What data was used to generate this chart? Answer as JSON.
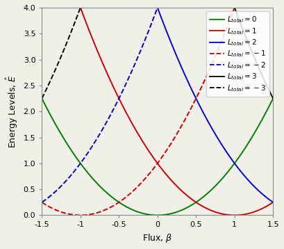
{
  "xlabel": "Flux, $\\beta$",
  "ylabel": "Energy Levels, $\\hat{E}$",
  "xlim": [
    -1.5,
    1.5
  ],
  "ylim": [
    0,
    4.0
  ],
  "U_tilde": 0.1,
  "legend_order": [
    0,
    1,
    2,
    -1,
    -2,
    3,
    -3
  ],
  "colors": {
    "0": "#008000",
    "1": "#cc0000",
    "2": "#0000cc",
    "-1": "#cc0000",
    "-2": "#0000cc",
    "3": "#000000",
    "-3": "#000000"
  },
  "linestyles": {
    "0": "solid",
    "1": "solid",
    "2": "solid",
    "-1": "dashed",
    "-2": "dashed",
    "3": "solid",
    "-3": "dashed"
  },
  "legend_labels": {
    "0": "$L_{total}=0$",
    "1": "$L_{total}=1$",
    "2": "$L_{total}=2$",
    "-1": "$L_{total}=-1$",
    "-2": "$L_{total}=-2$",
    "3": "$L_{total}=3$",
    "-3": "$L_{total}=-3$"
  },
  "xticks": [
    -1.5,
    -1.0,
    -0.5,
    0.0,
    0.5,
    1.0,
    1.5
  ],
  "xtick_labels": [
    "-1.5",
    "-1",
    "-0.5",
    "0",
    "0.5",
    "1",
    "1.5"
  ],
  "yticks": [
    0.0,
    0.5,
    1.0,
    1.5,
    2.0,
    2.5,
    3.0,
    3.5,
    4.0
  ],
  "figsize": [
    4.09,
    3.58
  ],
  "dpi": 100,
  "linewidth": 1.4,
  "legend_fontsize": 7.5,
  "axis_fontsize": 9,
  "tick_fontsize": 8,
  "bg_color": "#f0f0e8"
}
